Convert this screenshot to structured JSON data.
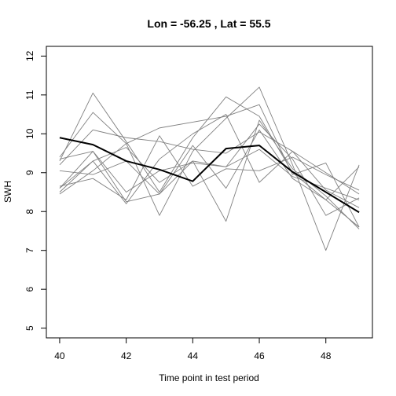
{
  "chart_data": {
    "type": "line",
    "title": "Lon =  -56.25 , Lat =  55.5",
    "xlabel": "Time point in test period",
    "ylabel": "SWH",
    "xlim": [
      39.6,
      49.4
    ],
    "ylim": [
      4.75,
      12.25
    ],
    "x_ticks": [
      40,
      42,
      44,
      46,
      48
    ],
    "y_ticks": [
      5,
      6,
      7,
      8,
      9,
      10,
      11,
      12
    ],
    "grid": false,
    "x": [
      40,
      41,
      42,
      43,
      44,
      45,
      46,
      47,
      48,
      49
    ],
    "series": [
      {
        "values": [
          9.3,
          11.05,
          9.8,
          8.5,
          9.9,
          10.95,
          10.45,
          9.0,
          8.3,
          7.6
        ],
        "color": "#808080",
        "width": 0.9
      },
      {
        "values": [
          9.4,
          10.55,
          9.75,
          7.9,
          9.55,
          10.4,
          11.2,
          9.2,
          7.0,
          9.2
        ],
        "color": "#808080",
        "width": 0.9
      },
      {
        "values": [
          8.6,
          9.3,
          8.2,
          9.35,
          10.0,
          10.5,
          8.75,
          9.55,
          8.55,
          8.1
        ],
        "color": "#808080",
        "width": 0.9
      },
      {
        "values": [
          8.45,
          9.05,
          9.75,
          10.15,
          10.3,
          10.45,
          10.75,
          8.95,
          9.25,
          7.6
        ],
        "color": "#808080",
        "width": 0.9
      },
      {
        "values": [
          8.6,
          9.55,
          8.25,
          8.45,
          9.3,
          9.15,
          10.25,
          9.35,
          7.9,
          8.35
        ],
        "color": "#808080",
        "width": 0.9
      },
      {
        "values": [
          9.2,
          10.1,
          9.9,
          9.8,
          9.6,
          9.5,
          10.05,
          9.55,
          9.0,
          8.45
        ],
        "color": "#808080",
        "width": 0.9
      },
      {
        "values": [
          8.5,
          9.3,
          9.65,
          8.75,
          9.3,
          7.75,
          10.35,
          9.1,
          8.4,
          7.55
        ],
        "color": "#808080",
        "width": 0.9
      },
      {
        "values": [
          9.05,
          8.95,
          9.3,
          8.45,
          9.7,
          8.6,
          10.1,
          8.85,
          8.3,
          9.15
        ],
        "color": "#808080",
        "width": 0.9
      },
      {
        "values": [
          8.65,
          8.85,
          8.3,
          9.95,
          8.65,
          9.1,
          9.05,
          9.4,
          8.95,
          8.55
        ],
        "color": "#808080",
        "width": 0.9
      },
      {
        "values": [
          9.35,
          9.55,
          8.5,
          9.05,
          9.25,
          9.15,
          9.6,
          8.9,
          8.6,
          8.3
        ],
        "color": "#808080",
        "width": 0.9
      },
      {
        "values": [
          9.9,
          9.72,
          9.3,
          9.08,
          8.78,
          9.62,
          9.7,
          9.02,
          8.5,
          7.98
        ],
        "color": "#000000",
        "width": 2
      }
    ]
  }
}
